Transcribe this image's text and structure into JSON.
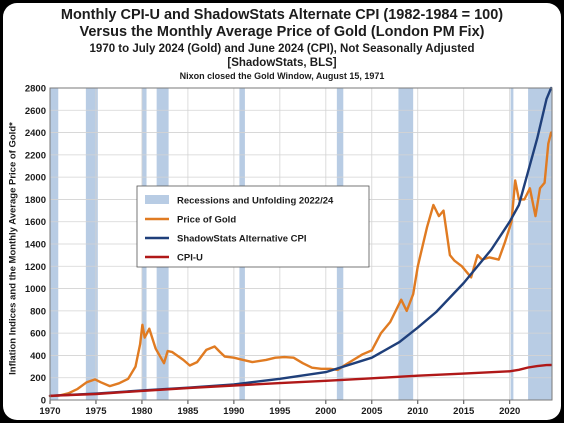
{
  "chart_data": {
    "type": "line",
    "title": "Monthly CPI-U and ShadowStats Alternate CPI (1982-1984 = 100)",
    "title_line2": "Versus the Monthly Average Price of Gold (London PM Fix)",
    "subtitle": "1970 to July 2024 (Gold) and June 2024 (CPI), Not Seasonally Adjusted",
    "source": "[ShadowStats, BLS]",
    "annotation": "Nixon closed the Gold Window, August 15, 1971",
    "ylabel": "Inflation Indices and the Monthly Average Price of Gold*",
    "xlabel": "",
    "xlim": [
      1970,
      2024.6
    ],
    "ylim": [
      0,
      2800
    ],
    "xticks": [
      1970,
      1975,
      1980,
      1985,
      1990,
      1995,
      2000,
      2005,
      2010,
      2015,
      2020
    ],
    "yticks": [
      0,
      200,
      400,
      600,
      800,
      1000,
      1200,
      1400,
      1600,
      1800,
      2000,
      2200,
      2400,
      2600,
      2800
    ],
    "grid": true,
    "legend_position": "center-left",
    "recessions": [
      [
        1970.0,
        1970.9
      ],
      [
        1973.9,
        1975.2
      ],
      [
        1980.0,
        1980.5
      ],
      [
        1981.6,
        1982.9
      ],
      [
        1990.6,
        1991.2
      ],
      [
        2001.2,
        2001.9
      ],
      [
        2007.9,
        2009.5
      ],
      [
        2020.1,
        2020.4
      ],
      [
        2022.0,
        2024.6
      ]
    ],
    "series": [
      {
        "name": "Recessions and Unfolding 2022/24",
        "type": "band",
        "color": "#b8cce4"
      },
      {
        "name": "Price of Gold",
        "color": "#e07b22",
        "x": [
          1970,
          1971,
          1972,
          1973,
          1974,
          1974.9,
          1975.5,
          1976.5,
          1977.5,
          1978.5,
          1979.3,
          1979.8,
          1980.05,
          1980.3,
          1980.8,
          1981.5,
          1982.4,
          1982.8,
          1983.3,
          1984.5,
          1985.2,
          1986,
          1987,
          1987.9,
          1988.5,
          1989,
          1990,
          1991,
          1992,
          1993.5,
          1994.5,
          1995.5,
          1996.5,
          1997.5,
          1998.5,
          1999.5,
          2000.5,
          2001.3,
          2002,
          2003,
          2004,
          2005,
          2006,
          2007,
          2008.2,
          2008.8,
          2009.5,
          2010,
          2011,
          2011.7,
          2012.3,
          2012.8,
          2013.5,
          2014,
          2014.8,
          2015.8,
          2016.5,
          2017,
          2017.8,
          2018.8,
          2019.5,
          2020.2,
          2020.6,
          2021,
          2021.6,
          2022.2,
          2022.8,
          2023.3,
          2023.8,
          2024.2,
          2024.5
        ],
        "values": [
          35,
          40,
          60,
          100,
          160,
          185,
          160,
          125,
          150,
          190,
          300,
          500,
          675,
          560,
          640,
          460,
          330,
          440,
          430,
          360,
          310,
          340,
          450,
          480,
          430,
          390,
          380,
          360,
          340,
          360,
          380,
          385,
          380,
          330,
          290,
          280,
          280,
          270,
          310,
          360,
          410,
          445,
          600,
          700,
          900,
          800,
          950,
          1200,
          1550,
          1750,
          1650,
          1700,
          1300,
          1250,
          1200,
          1100,
          1300,
          1260,
          1280,
          1260,
          1420,
          1600,
          1970,
          1800,
          1800,
          1900,
          1650,
          1900,
          1950,
          2300,
          2400
        ]
      },
      {
        "name": "ShadowStats Alternative CPI",
        "color": "#1f3f7a",
        "x": [
          1970,
          1975,
          1980,
          1985,
          1990,
          1995,
          2000,
          2005,
          2008,
          2010,
          2012,
          2015,
          2018,
          2020,
          2021,
          2022,
          2023,
          2024,
          2024.5
        ],
        "values": [
          38,
          57,
          85,
          110,
          140,
          190,
          250,
          380,
          520,
          650,
          790,
          1050,
          1350,
          1600,
          1750,
          2050,
          2350,
          2700,
          2800
        ]
      },
      {
        "name": "CPI-U",
        "color": "#b01818",
        "x": [
          1970,
          1975,
          1980,
          1985,
          1990,
          1995,
          2000,
          2005,
          2010,
          2015,
          2020,
          2021,
          2022,
          2023,
          2024,
          2024.5
        ],
        "values": [
          38,
          54,
          82,
          107,
          130,
          152,
          172,
          195,
          218,
          237,
          258,
          271,
          292,
          304,
          313,
          314
        ]
      }
    ]
  }
}
